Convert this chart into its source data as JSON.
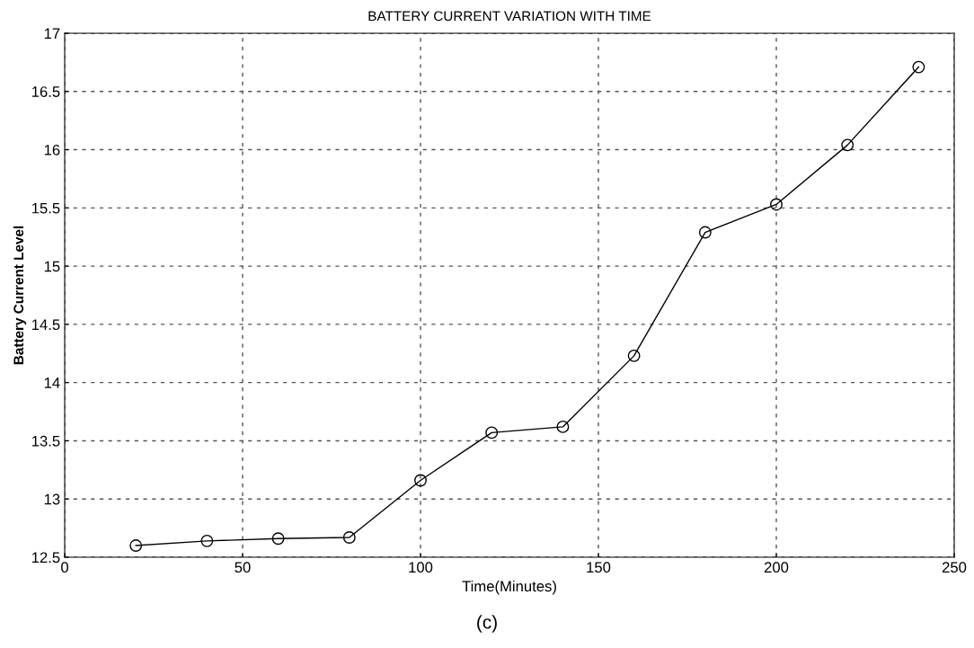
{
  "chart_data": {
    "type": "line",
    "title": "BATTERY CURRENT VARIATION WITH TIME",
    "xlabel": "Time(Minutes)",
    "ylabel": "Battery Current Level",
    "x": [
      20,
      40,
      60,
      80,
      100,
      120,
      140,
      160,
      180,
      200,
      220,
      240
    ],
    "series": [
      {
        "color": "#000000",
        "values": [
          12.6,
          12.64,
          12.66,
          12.67,
          13.16,
          13.57,
          13.62,
          14.23,
          15.29,
          15.53,
          16.04,
          16.71
        ]
      }
    ],
    "xlim": [
      0,
      250
    ],
    "xticks": [
      0,
      50,
      100,
      150,
      200,
      250
    ],
    "ylim": [
      12.5,
      17
    ],
    "yticks": [
      12.5,
      13,
      13.5,
      14,
      14.5,
      15,
      15.5,
      16,
      16.5,
      17
    ],
    "grid": true,
    "marker": "circle",
    "line_style": "solid",
    "annotations": [
      "(c)"
    ]
  }
}
